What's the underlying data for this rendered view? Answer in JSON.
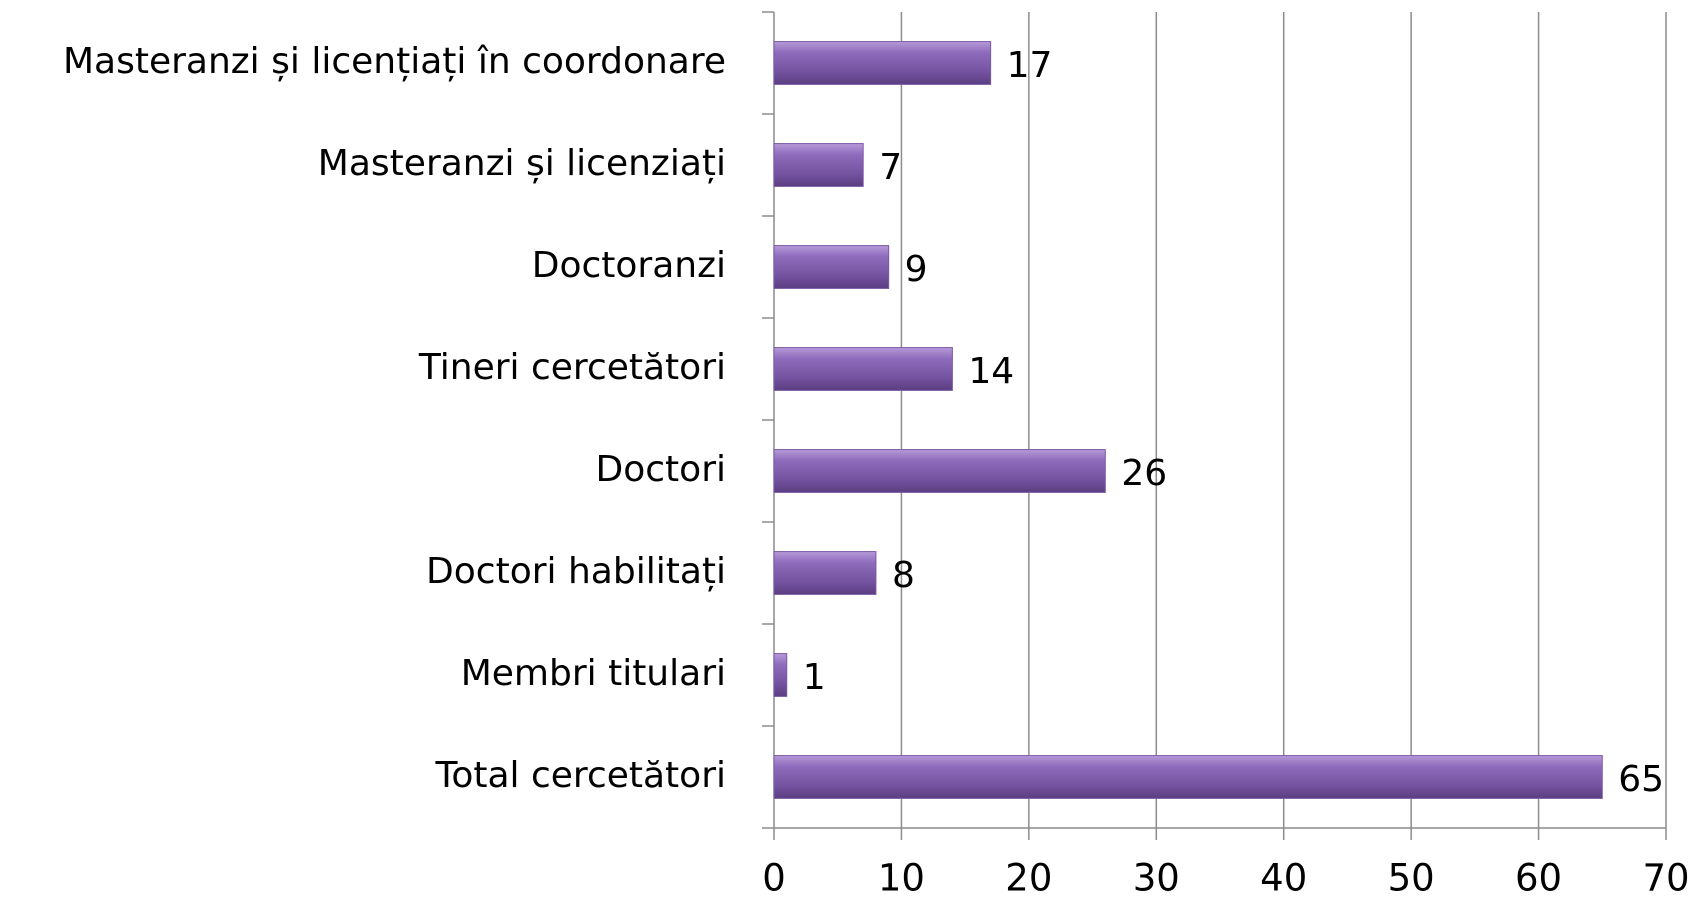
{
  "chart_data": {
    "type": "bar",
    "orientation": "horizontal",
    "categories": [
      "Masteranzi și licențiați în coordonare",
      "Masteranzi și licenziați",
      "Doctoranzi",
      "Tineri cercetători",
      "Doctori",
      "Doctori habilitați",
      "Membri titulari",
      "Total cercetători"
    ],
    "values": [
      17,
      7,
      9,
      14,
      26,
      8,
      1,
      65
    ],
    "color": "#7b5aa6",
    "xlim": [
      0,
      70
    ],
    "xticks": [
      0,
      10,
      20,
      30,
      40,
      50,
      60,
      70
    ],
    "grid": true
  }
}
